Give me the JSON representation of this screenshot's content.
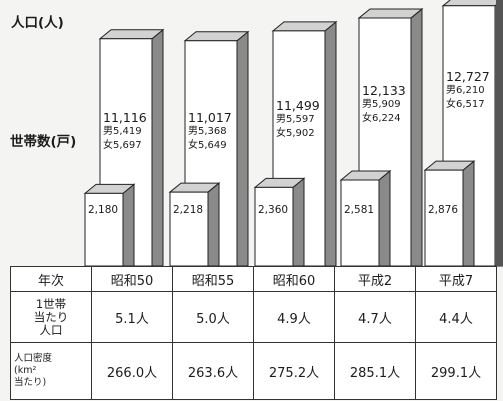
{
  "labels": {
    "population_axis": "人口(人)",
    "household_axis": "世帯数(戸)"
  },
  "colors": {
    "bar_face": "#ffffff",
    "bar_side": "#8a8a8a",
    "bar_top": "#d2d2d2",
    "outline": "#222222"
  },
  "chart_data": {
    "type": "bar",
    "categories": [
      "昭和50",
      "昭和55",
      "昭和60",
      "平成2",
      "平成7"
    ],
    "series": [
      {
        "name": "人口",
        "values": [
          11116,
          11017,
          11499,
          12133,
          12727
        ],
        "male": [
          5419,
          5368,
          5597,
          5909,
          6210
        ],
        "female": [
          5697,
          5649,
          5902,
          6224,
          6517
        ],
        "total_labels": [
          "11,116",
          "11,017",
          "11,499",
          "12,133",
          "12,727"
        ],
        "male_labels": [
          "男5,419",
          "男5,368",
          "男5,597",
          "男5,909",
          "男6,210"
        ],
        "female_labels": [
          "女5,697",
          "女5,649",
          "女5,902",
          "女6,224",
          "女6,517"
        ]
      },
      {
        "name": "世帯数",
        "values": [
          2180,
          2218,
          2360,
          2581,
          2876
        ],
        "labels": [
          "2,180",
          "2,218",
          "2,360",
          "2,581",
          "2,876"
        ]
      }
    ],
    "population_ylim": [
      0,
      13500
    ],
    "household_ylim": [
      0,
      4800
    ],
    "legend": "none",
    "grid": false
  },
  "table": {
    "header_label": "年次",
    "years": [
      "昭和50",
      "昭和55",
      "昭和60",
      "平成2",
      "平成7"
    ],
    "rows": [
      {
        "head_lines": [
          "1世帯",
          "当たり",
          "人口"
        ],
        "values": [
          "5.1人",
          "5.0人",
          "4.9人",
          "4.7人",
          "4.4人"
        ]
      },
      {
        "head_lines": [
          "人口密度",
          "(km²",
          "当たり)"
        ],
        "values": [
          "266.0人",
          "263.6人",
          "275.2人",
          "285.1人",
          "299.1人"
        ]
      }
    ]
  }
}
